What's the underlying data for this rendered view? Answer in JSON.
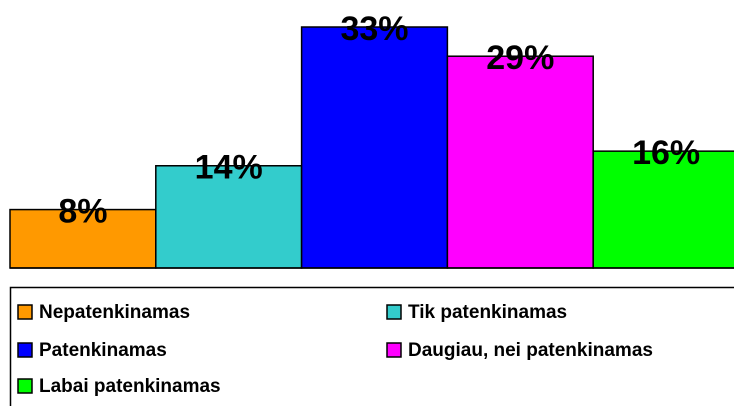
{
  "chart_data": {
    "type": "bar",
    "categories": [
      "Nepatenkinamas",
      "Tik patenkinamas",
      "Patenkinamas",
      "Daugiau, nei patenkinamas",
      "Labai patenkinamas"
    ],
    "values": [
      8,
      14,
      33,
      29,
      16
    ],
    "value_labels": [
      "8%",
      "14%",
      "33%",
      "29%",
      "16%"
    ],
    "colors": [
      "#FF9900",
      "#33CCCC",
      "#0000FF",
      "#FF00FF",
      "#00FF00"
    ],
    "legend": "bottom"
  }
}
